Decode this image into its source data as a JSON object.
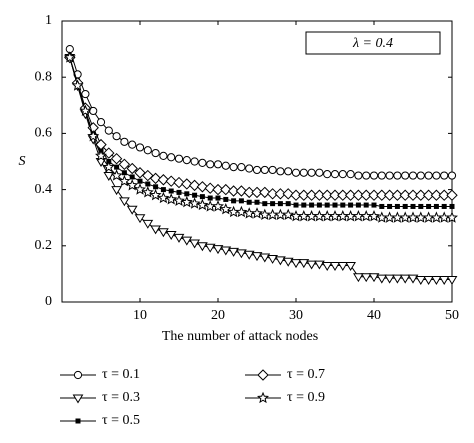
{
  "chart_data": {
    "type": "line",
    "xlabel": "The number of attack nodes",
    "ylabel": "S",
    "annotation": "λ = 0.4",
    "xlim": [
      0,
      50
    ],
    "ylim": [
      0,
      1
    ],
    "xticks": [
      10,
      20,
      30,
      40,
      50
    ],
    "yticks": [
      0,
      0.2,
      0.4,
      0.6,
      0.8,
      1
    ],
    "x": [
      1,
      2,
      3,
      4,
      5,
      6,
      7,
      8,
      9,
      10,
      11,
      12,
      13,
      14,
      15,
      16,
      17,
      18,
      19,
      20,
      21,
      22,
      23,
      24,
      25,
      26,
      27,
      28,
      29,
      30,
      31,
      32,
      33,
      34,
      35,
      36,
      37,
      38,
      39,
      40,
      41,
      42,
      43,
      44,
      45,
      46,
      47,
      48,
      49,
      50
    ],
    "series": [
      {
        "name": "τ = 0.1",
        "color": "#000000",
        "marker": "circle",
        "values": [
          0.9,
          0.81,
          0.74,
          0.68,
          0.64,
          0.61,
          0.59,
          0.57,
          0.56,
          0.55,
          0.54,
          0.53,
          0.52,
          0.515,
          0.51,
          0.505,
          0.5,
          0.495,
          0.49,
          0.49,
          0.485,
          0.48,
          0.48,
          0.475,
          0.47,
          0.47,
          0.47,
          0.465,
          0.465,
          0.46,
          0.46,
          0.46,
          0.46,
          0.455,
          0.455,
          0.455,
          0.455,
          0.45,
          0.45,
          0.45,
          0.45,
          0.45,
          0.45,
          0.45,
          0.45,
          0.45,
          0.45,
          0.45,
          0.45,
          0.45
        ]
      },
      {
        "name": "τ = 0.3",
        "color": "#000000",
        "marker": "triangle-down",
        "values": [
          0.87,
          0.77,
          0.67,
          0.58,
          0.5,
          0.45,
          0.4,
          0.36,
          0.33,
          0.3,
          0.28,
          0.26,
          0.25,
          0.24,
          0.23,
          0.22,
          0.21,
          0.2,
          0.195,
          0.19,
          0.185,
          0.18,
          0.175,
          0.17,
          0.165,
          0.16,
          0.155,
          0.15,
          0.145,
          0.14,
          0.14,
          0.135,
          0.135,
          0.13,
          0.13,
          0.13,
          0.13,
          0.09,
          0.09,
          0.09,
          0.085,
          0.085,
          0.085,
          0.085,
          0.085,
          0.08,
          0.08,
          0.08,
          0.08,
          0.08
        ]
      },
      {
        "name": "τ = 0.5",
        "color": "#000000",
        "marker": "square",
        "values": [
          0.87,
          0.77,
          0.68,
          0.6,
          0.54,
          0.5,
          0.48,
          0.46,
          0.445,
          0.43,
          0.42,
          0.41,
          0.4,
          0.395,
          0.39,
          0.385,
          0.38,
          0.375,
          0.37,
          0.37,
          0.365,
          0.36,
          0.36,
          0.355,
          0.355,
          0.35,
          0.35,
          0.35,
          0.35,
          0.345,
          0.345,
          0.345,
          0.345,
          0.345,
          0.345,
          0.345,
          0.345,
          0.345,
          0.345,
          0.345,
          0.34,
          0.34,
          0.34,
          0.34,
          0.34,
          0.34,
          0.34,
          0.34,
          0.34,
          0.34
        ]
      },
      {
        "name": "τ = 0.7",
        "color": "#000000",
        "marker": "diamond",
        "values": [
          0.87,
          0.78,
          0.69,
          0.62,
          0.56,
          0.53,
          0.51,
          0.49,
          0.475,
          0.46,
          0.45,
          0.44,
          0.435,
          0.43,
          0.425,
          0.42,
          0.415,
          0.41,
          0.405,
          0.4,
          0.4,
          0.395,
          0.395,
          0.39,
          0.39,
          0.39,
          0.385,
          0.385,
          0.385,
          0.38,
          0.38,
          0.38,
          0.38,
          0.38,
          0.38,
          0.38,
          0.38,
          0.38,
          0.38,
          0.38,
          0.38,
          0.38,
          0.38,
          0.38,
          0.38,
          0.38,
          0.38,
          0.38,
          0.38,
          0.38
        ]
      },
      {
        "name": "τ = 0.9",
        "color": "#000000",
        "marker": "star",
        "values": [
          0.87,
          0.77,
          0.68,
          0.59,
          0.52,
          0.48,
          0.45,
          0.43,
          0.415,
          0.4,
          0.39,
          0.38,
          0.37,
          0.365,
          0.36,
          0.355,
          0.35,
          0.345,
          0.34,
          0.34,
          0.33,
          0.32,
          0.32,
          0.315,
          0.315,
          0.31,
          0.31,
          0.31,
          0.31,
          0.305,
          0.305,
          0.305,
          0.305,
          0.305,
          0.305,
          0.305,
          0.305,
          0.305,
          0.305,
          0.305,
          0.3,
          0.3,
          0.3,
          0.3,
          0.3,
          0.3,
          0.3,
          0.3,
          0.3,
          0.3
        ]
      }
    ]
  }
}
